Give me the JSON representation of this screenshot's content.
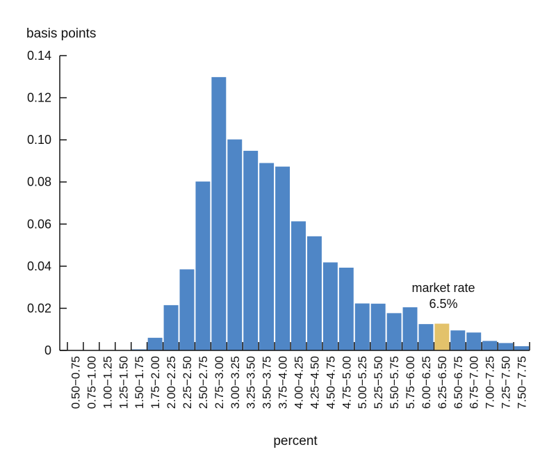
{
  "chart_data": {
    "type": "bar",
    "ylabel": "basis points",
    "xlabel": "percent",
    "ylim": [
      0,
      0.14
    ],
    "yticks": [
      "0",
      "0.02",
      "0.04",
      "0.06",
      "0.08",
      "0.10",
      "0.12",
      "0.14"
    ],
    "categories": [
      "0.50−0.75",
      "0.75−1.00",
      "1.00−1.25",
      "1.25−1.50",
      "1.50−1.75",
      "1.75−2.00",
      "2.00−2.25",
      "2.25−2.50",
      "2.50−2.75",
      "2.75−3.00",
      "3.00−3.25",
      "3.25−3.50",
      "3.50−3.75",
      "3.75−4.00",
      "4.00−4.25",
      "4.25−4.50",
      "4.50−4.75",
      "4.75−5.00",
      "5.00−5.25",
      "5.25−5.50",
      "5.50−5.75",
      "5.75−6.00",
      "6.00−6.25",
      "6.25−6.50",
      "6.50−6.75",
      "6.75−7.00",
      "7.00−7.25",
      "7.25−7.50",
      "7.50−7.75"
    ],
    "values": [
      0,
      0,
      0,
      0,
      0.0005,
      0.006,
      0.0215,
      0.0385,
      0.0802,
      0.1298,
      0.1002,
      0.0948,
      0.089,
      0.0873,
      0.0613,
      0.0542,
      0.0418,
      0.0393,
      0.0223,
      0.0222,
      0.0177,
      0.0205,
      0.0125,
      0.0127,
      0.0095,
      0.0085,
      0.0045,
      0.0035,
      0.002
    ],
    "highlight_index": 23,
    "colors": {
      "bar": "#4f86c6",
      "highlight": "#e3c26b"
    },
    "annotation": {
      "line1": "market rate",
      "line2": "6.5%"
    }
  }
}
